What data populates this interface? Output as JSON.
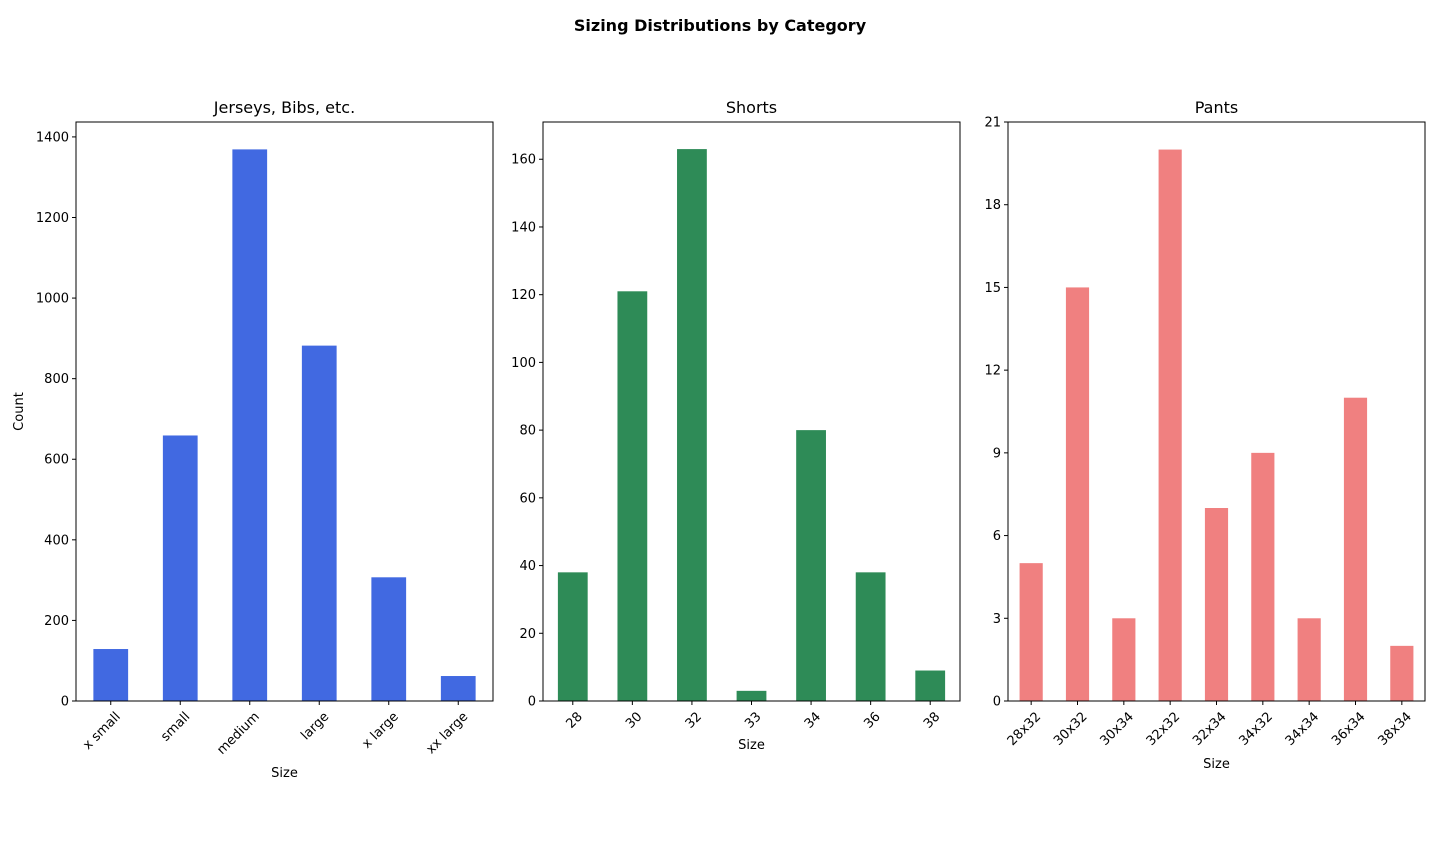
{
  "figure": {
    "title": "Sizing Distributions by Category"
  },
  "chart_data": [
    {
      "type": "bar",
      "title": "Jerseys, Bibs, etc.",
      "xlabel": "Size",
      "ylabel": "Count",
      "categories": [
        "x small",
        "small",
        "medium",
        "large",
        "x large",
        "xx large"
      ],
      "values": [
        129,
        659,
        1369,
        882,
        307,
        62
      ],
      "ylim": [
        0,
        1437
      ],
      "yticks": [
        0,
        200,
        400,
        600,
        800,
        1000,
        1200,
        1400
      ],
      "color": "#4169e1",
      "grid": false
    },
    {
      "type": "bar",
      "title": "Shorts",
      "xlabel": "Size",
      "ylabel": "",
      "categories": [
        "28",
        "30",
        "32",
        "33",
        "34",
        "36",
        "38"
      ],
      "values": [
        38,
        121,
        163,
        3,
        80,
        38,
        9
      ],
      "ylim": [
        0,
        171
      ],
      "yticks": [
        0,
        20,
        40,
        60,
        80,
        100,
        120,
        140,
        160
      ],
      "color": "#2e8b57",
      "grid": false
    },
    {
      "type": "bar",
      "title": "Pants",
      "xlabel": "Size",
      "ylabel": "",
      "categories": [
        "28x32",
        "30x32",
        "30x34",
        "32x32",
        "32x34",
        "34x32",
        "34x34",
        "36x34",
        "38x34"
      ],
      "values": [
        5,
        15,
        3,
        20,
        7,
        9,
        3,
        11,
        2
      ],
      "ylim": [
        0,
        21
      ],
      "yticks": [
        0,
        3,
        6,
        9,
        12,
        15,
        18,
        21
      ],
      "color": "#f08080",
      "grid": false
    }
  ]
}
